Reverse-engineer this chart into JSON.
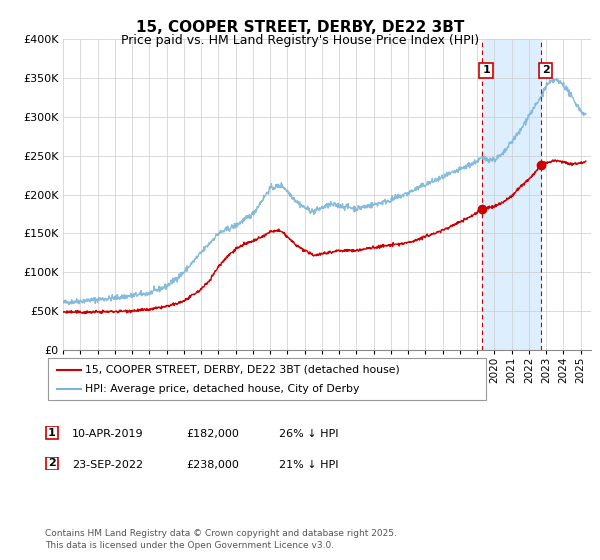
{
  "title": "15, COOPER STREET, DERBY, DE22 3BT",
  "subtitle": "Price paid vs. HM Land Registry's House Price Index (HPI)",
  "ylim": [
    0,
    400000
  ],
  "yticks": [
    0,
    50000,
    100000,
    150000,
    200000,
    250000,
    300000,
    350000,
    400000
  ],
  "ytick_labels": [
    "£0",
    "£50K",
    "£100K",
    "£150K",
    "£200K",
    "£250K",
    "£300K",
    "£350K",
    "£400K"
  ],
  "xlim_start": 1995.0,
  "xlim_end": 2025.6,
  "xtick_years": [
    1995,
    1996,
    1997,
    1998,
    1999,
    2000,
    2001,
    2002,
    2003,
    2004,
    2005,
    2006,
    2007,
    2008,
    2009,
    2010,
    2011,
    2012,
    2013,
    2014,
    2015,
    2016,
    2017,
    2018,
    2019,
    2020,
    2021,
    2022,
    2023,
    2024,
    2025
  ],
  "hpi_color": "#7ab4d8",
  "price_color": "#cc0000",
  "vline1_x": 2019.27,
  "vline2_x": 2022.73,
  "vline_color": "#cc0000",
  "shade_color": "#ddeeff",
  "marker1_x": 2019.27,
  "marker1_y": 182000,
  "marker2_x": 2022.73,
  "marker2_y": 238000,
  "legend1_label": "15, COOPER STREET, DERBY, DE22 3BT (detached house)",
  "legend2_label": "HPI: Average price, detached house, City of Derby",
  "table_row1": [
    "1",
    "10-APR-2019",
    "£182,000",
    "26% ↓ HPI"
  ],
  "table_row2": [
    "2",
    "23-SEP-2022",
    "£238,000",
    "21% ↓ HPI"
  ],
  "footer": "Contains HM Land Registry data © Crown copyright and database right 2025.\nThis data is licensed under the Open Government Licence v3.0.",
  "bg_color": "#ffffff",
  "grid_color": "#cccccc"
}
